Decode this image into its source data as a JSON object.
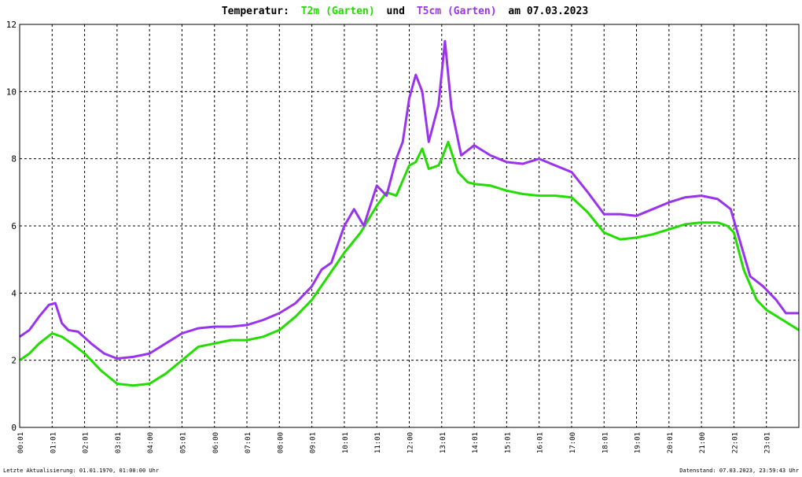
{
  "chart_data": {
    "type": "line",
    "title": {
      "prefix": "Temperatur:",
      "s1_label": "T2m (Garten)",
      "und": "und",
      "s2_label": "T5cm (Garten)",
      "suffix": "am 07.03.2023"
    },
    "x_ticks": [
      "00:01",
      "01:01",
      "02:01",
      "03:01",
      "04:00",
      "05:01",
      "06:00",
      "07:01",
      "08:00",
      "09:01",
      "10:01",
      "11:01",
      "12:00",
      "13:01",
      "14:01",
      "15:01",
      "16:01",
      "17:00",
      "18:01",
      "19:01",
      "20:01",
      "21:00",
      "22:01",
      "23:01"
    ],
    "ylim": [
      0,
      12
    ],
    "y_ticks": [
      0,
      2,
      4,
      6,
      8,
      10,
      12
    ],
    "grid": true,
    "series": [
      {
        "name": "T2m (Garten)",
        "color": "#22dd00",
        "points": [
          [
            0,
            2.0
          ],
          [
            0.3,
            2.2
          ],
          [
            0.6,
            2.5
          ],
          [
            1.0,
            2.8
          ],
          [
            1.3,
            2.7
          ],
          [
            1.6,
            2.5
          ],
          [
            2.0,
            2.2
          ],
          [
            2.5,
            1.7
          ],
          [
            3.0,
            1.3
          ],
          [
            3.5,
            1.25
          ],
          [
            4.0,
            1.3
          ],
          [
            4.5,
            1.6
          ],
          [
            5.0,
            2.0
          ],
          [
            5.5,
            2.4
          ],
          [
            6.0,
            2.5
          ],
          [
            6.5,
            2.6
          ],
          [
            7.0,
            2.6
          ],
          [
            7.5,
            2.7
          ],
          [
            8.0,
            2.9
          ],
          [
            8.5,
            3.3
          ],
          [
            9.0,
            3.8
          ],
          [
            9.5,
            4.5
          ],
          [
            10.0,
            5.2
          ],
          [
            10.5,
            5.8
          ],
          [
            11.0,
            6.6
          ],
          [
            11.3,
            7.0
          ],
          [
            11.6,
            6.9
          ],
          [
            12.0,
            7.8
          ],
          [
            12.2,
            7.9
          ],
          [
            12.4,
            8.3
          ],
          [
            12.6,
            7.7
          ],
          [
            12.9,
            7.8
          ],
          [
            13.0,
            8.0
          ],
          [
            13.2,
            8.5
          ],
          [
            13.5,
            7.6
          ],
          [
            13.8,
            7.3
          ],
          [
            14.0,
            7.25
          ],
          [
            14.5,
            7.2
          ],
          [
            15.0,
            7.05
          ],
          [
            15.5,
            6.95
          ],
          [
            16.0,
            6.9
          ],
          [
            16.5,
            6.9
          ],
          [
            17.0,
            6.85
          ],
          [
            17.5,
            6.4
          ],
          [
            18.0,
            5.8
          ],
          [
            18.5,
            5.6
          ],
          [
            19.0,
            5.65
          ],
          [
            19.5,
            5.75
          ],
          [
            20.0,
            5.9
          ],
          [
            20.5,
            6.05
          ],
          [
            21.0,
            6.1
          ],
          [
            21.5,
            6.1
          ],
          [
            21.8,
            6.0
          ],
          [
            22.0,
            5.8
          ],
          [
            22.3,
            4.7
          ],
          [
            22.7,
            3.8
          ],
          [
            23.0,
            3.5
          ],
          [
            23.5,
            3.2
          ],
          [
            24.0,
            2.9
          ]
        ]
      },
      {
        "name": "T5cm (Garten)",
        "color": "#9933ee",
        "points": [
          [
            0,
            2.7
          ],
          [
            0.3,
            2.9
          ],
          [
            0.6,
            3.3
          ],
          [
            0.9,
            3.65
          ],
          [
            1.1,
            3.7
          ],
          [
            1.3,
            3.1
          ],
          [
            1.5,
            2.9
          ],
          [
            1.8,
            2.85
          ],
          [
            2.2,
            2.5
          ],
          [
            2.6,
            2.2
          ],
          [
            3.0,
            2.05
          ],
          [
            3.5,
            2.1
          ],
          [
            4.0,
            2.2
          ],
          [
            4.5,
            2.5
          ],
          [
            5.0,
            2.8
          ],
          [
            5.5,
            2.95
          ],
          [
            6.0,
            3.0
          ],
          [
            6.5,
            3.0
          ],
          [
            7.0,
            3.05
          ],
          [
            7.5,
            3.2
          ],
          [
            8.0,
            3.4
          ],
          [
            8.5,
            3.7
          ],
          [
            9.0,
            4.2
          ],
          [
            9.3,
            4.7
          ],
          [
            9.6,
            4.9
          ],
          [
            10.0,
            6.0
          ],
          [
            10.3,
            6.5
          ],
          [
            10.6,
            6.0
          ],
          [
            11.0,
            7.2
          ],
          [
            11.3,
            6.9
          ],
          [
            11.6,
            8.0
          ],
          [
            11.8,
            8.5
          ],
          [
            12.0,
            9.8
          ],
          [
            12.2,
            10.5
          ],
          [
            12.4,
            10.0
          ],
          [
            12.6,
            8.5
          ],
          [
            12.9,
            9.6
          ],
          [
            13.1,
            11.5
          ],
          [
            13.3,
            9.5
          ],
          [
            13.6,
            8.1
          ],
          [
            14.0,
            8.4
          ],
          [
            14.5,
            8.1
          ],
          [
            15.0,
            7.9
          ],
          [
            15.5,
            7.85
          ],
          [
            16.0,
            8.0
          ],
          [
            16.5,
            7.8
          ],
          [
            17.0,
            7.6
          ],
          [
            17.5,
            7.0
          ],
          [
            18.0,
            6.35
          ],
          [
            18.5,
            6.35
          ],
          [
            19.0,
            6.3
          ],
          [
            19.5,
            6.5
          ],
          [
            20.0,
            6.7
          ],
          [
            20.5,
            6.85
          ],
          [
            21.0,
            6.9
          ],
          [
            21.5,
            6.8
          ],
          [
            21.9,
            6.5
          ],
          [
            22.2,
            5.5
          ],
          [
            22.5,
            4.5
          ],
          [
            22.9,
            4.2
          ],
          [
            23.3,
            3.8
          ],
          [
            23.6,
            3.4
          ],
          [
            24.0,
            3.4
          ]
        ]
      }
    ]
  },
  "footer": {
    "left": "Letzte Aktualisierung: 01.01.1970, 01:00:00 Uhr",
    "right": "Datenstand: 07.03.2023, 23:59:43 Uhr"
  },
  "colors": {
    "grid": "#000000",
    "background": "#ffffff"
  }
}
